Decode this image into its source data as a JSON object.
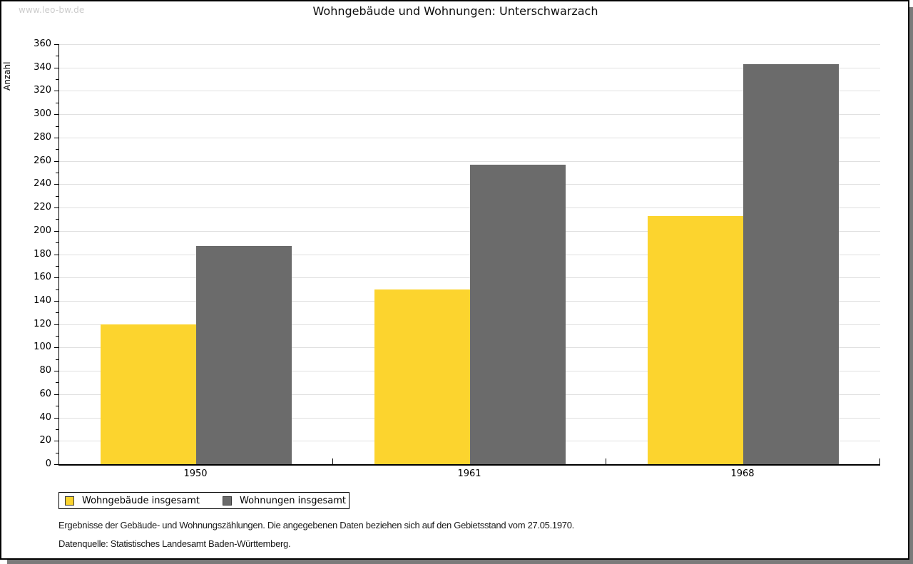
{
  "watermark": "www.leo-bw.de",
  "header": {
    "title": "Wohngebäude und Wohnungen: Unterschwarzach"
  },
  "chart_data": {
    "type": "bar",
    "title": "Wohngebäude und Wohnungen: Unterschwarzach",
    "xlabel": "",
    "ylabel": "Anzahl",
    "categories": [
      "1950",
      "1961",
      "1968"
    ],
    "series": [
      {
        "name": "Wohngebäude insgesamt",
        "color": "#fcd42e",
        "values": [
          120,
          150,
          213
        ]
      },
      {
        "name": "Wohnungen insgesamt",
        "color": "#6b6b6b",
        "values": [
          187,
          257,
          343
        ]
      }
    ],
    "ylim": [
      0,
      360
    ],
    "ytick_step": 20,
    "minor_tick_step": 10,
    "grid": true,
    "gridline_color": "#e0e0e0",
    "legend_position": "bottom-left"
  },
  "footnotes": {
    "line1": "Ergebnisse der Gebäude- und Wohnungszählungen. Die angegebenen Daten beziehen sich auf den Gebietsstand vom 27.05.1970.",
    "line2": "Datenquelle: Statistisches Landesamt Baden-Württemberg."
  }
}
